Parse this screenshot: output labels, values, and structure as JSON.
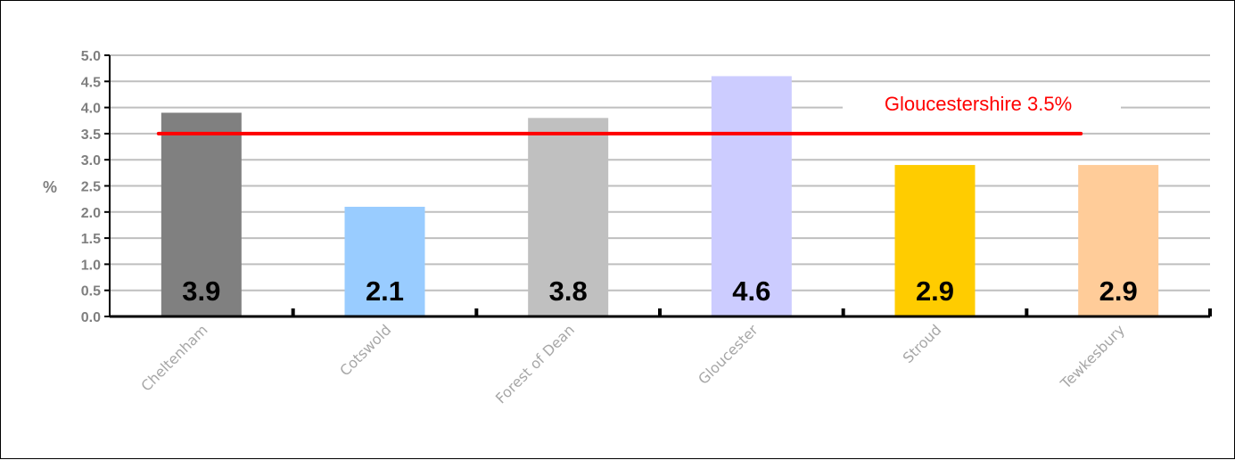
{
  "chart_data": {
    "type": "bar",
    "categories": [
      "Cheltenham",
      "Cotswold",
      "Forest of Dean",
      "Gloucester",
      "Stroud",
      "Tewkesbury"
    ],
    "values": [
      3.9,
      2.1,
      3.8,
      4.6,
      2.9,
      2.9
    ],
    "value_labels": [
      "3.9",
      "2.1",
      "3.8",
      "4.6",
      "2.9",
      "2.9"
    ],
    "bar_colors": [
      "#808080",
      "#99ccff",
      "#c0c0c0",
      "#ccccff",
      "#ffcc00",
      "#ffcc99"
    ],
    "ylabel": "%",
    "ylim": [
      0,
      5
    ],
    "yticks": [
      "0.0",
      "0.5",
      "1.0",
      "1.5",
      "2.0",
      "2.5",
      "3.0",
      "3.5",
      "4.0",
      "4.5",
      "5.0"
    ],
    "grid": true,
    "reference_line": {
      "label": "Gloucestershire 3.5%",
      "value": 3.5,
      "color": "#ff0000"
    }
  }
}
